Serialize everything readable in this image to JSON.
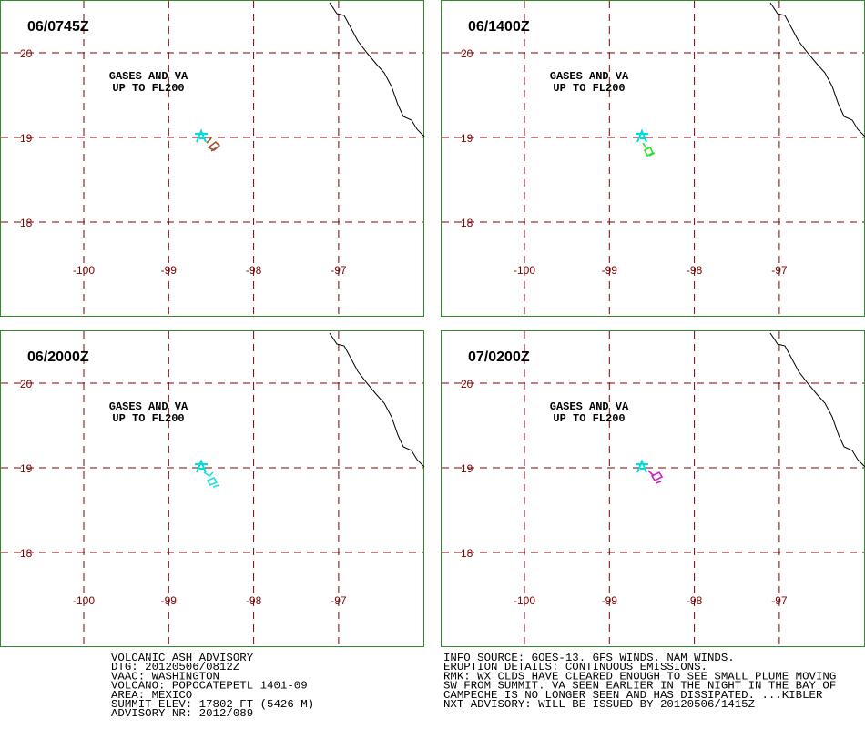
{
  "panels": [
    {
      "title": "06/0745Z",
      "label_lines": [
        "GASES AND VA",
        "UP TO FL200"
      ],
      "plume_color": "#a0522d"
    },
    {
      "title": "06/1400Z",
      "label_lines": [
        "GASES AND VA",
        "UP TO FL200"
      ],
      "plume_color": "#33dd33"
    },
    {
      "title": "06/2000Z",
      "label_lines": [
        "GASES AND VA",
        "UP TO FL200"
      ],
      "plume_color": "#22dddd"
    },
    {
      "title": "07/0200Z",
      "label_lines": [
        "GASES AND VA",
        "UP TO FL200"
      ],
      "plume_color": "#cc22cc"
    }
  ],
  "lat_ticks": [
    20,
    19,
    18
  ],
  "lon_ticks": [
    -100,
    -99,
    -98,
    -97
  ],
  "advisory_left": [
    "VOLCANIC ASH ADVISORY",
    "DTG: 20120506/0812Z",
    "VAAC: WASHINGTON",
    "VOLCANO: POPOCATEPETL 1401-09",
    "AREA: MEXICO",
    "SUMMIT ELEV: 17802 FT (5426 M)",
    "ADVISORY NR: 2012/089"
  ],
  "advisory_right": [
    "INFO SOURCE: GOES-13. GFS WINDS. NAM WINDS.",
    "ERUPTION DETAILS: CONTINUOUS EMISSIONS.",
    "RMK: WX CLDS HAVE CLEARED ENOUGH TO SEE SMALL PLUME MOVING",
    "SW FROM SUMMIT. VA SEEN EARLIER IN THE NIGHT IN THE BAY OF",
    "CAMPECHE IS NO LONGER SEEN AND HAS DISSIPATED. ...KIBLER",
    "NXT ADVISORY: WILL BE ISSUED BY 20120506/1415Z"
  ]
}
